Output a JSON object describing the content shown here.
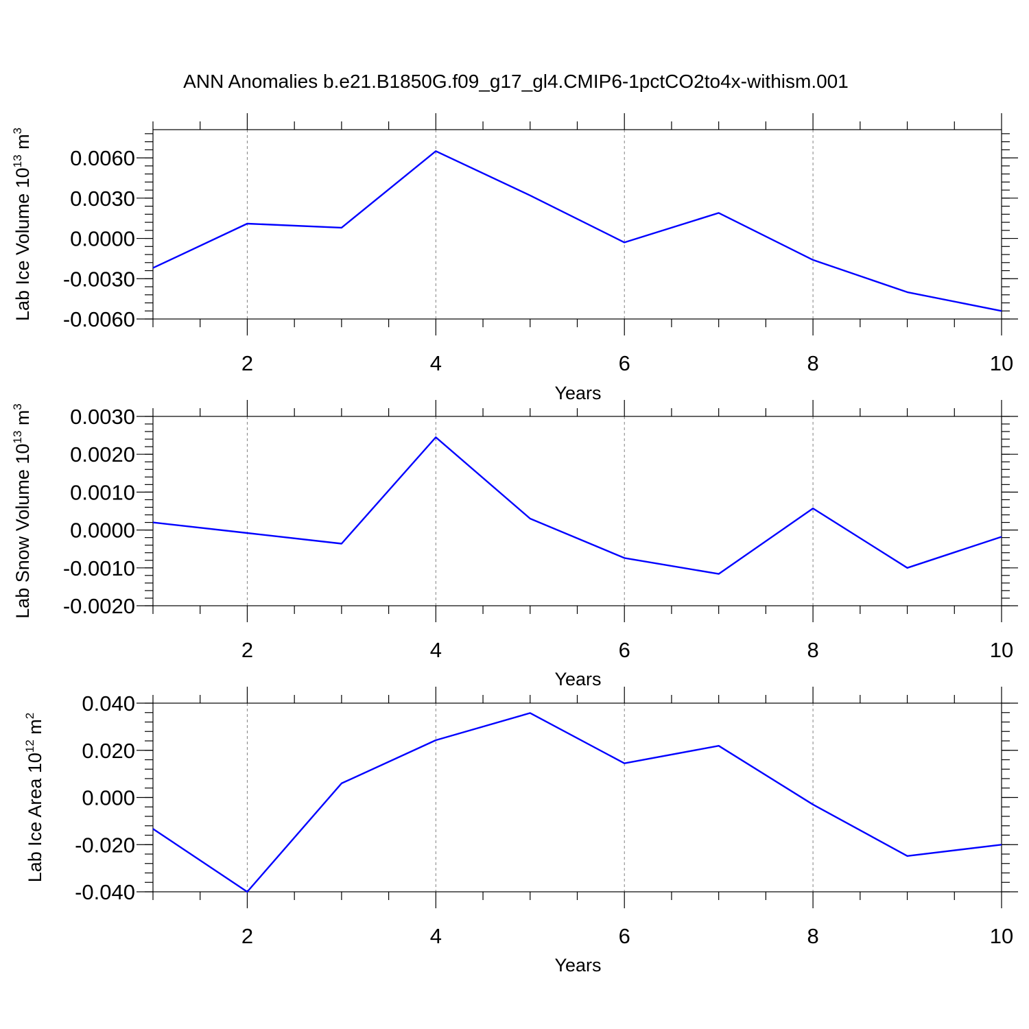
{
  "title": "ANN Anomalies b.e21.B1850G.f09_g17_gl4.CMIP6-1pctCO2to4x-withism.001",
  "colors": {
    "series": "#0000ff",
    "grid": "#808080",
    "axis": "#000000"
  },
  "chart_data": [
    {
      "type": "line",
      "xlabel": "Years",
      "ylabel": {
        "text": "Lab Ice Volume 10",
        "exp": "13",
        "unit_text": " m",
        "unit_exp": "3"
      },
      "xlim": [
        1,
        10
      ],
      "ylim": [
        -0.006,
        0.0081
      ],
      "x_ticks": [
        2,
        4,
        6,
        8,
        10
      ],
      "x_tick_labels": [
        "2",
        "4",
        "6",
        "8",
        "10"
      ],
      "y_ticks": [
        -0.006,
        -0.003,
        0.0,
        0.003,
        0.006
      ],
      "y_tick_labels": [
        "-0.0060",
        "-0.0030",
        "0.0000",
        "0.0030",
        "0.0060"
      ],
      "y_minor_step": 0.0006,
      "grid_x": [
        2,
        4,
        6,
        8
      ],
      "series": [
        {
          "x": [
            1,
            2,
            3,
            4,
            5,
            6,
            7,
            8,
            9,
            10
          ],
          "values": [
            -0.0022,
            0.0011,
            0.0008,
            0.0065,
            0.0032,
            -0.0003,
            0.0019,
            -0.0016,
            -0.004,
            -0.0054
          ]
        }
      ]
    },
    {
      "type": "line",
      "xlabel": "Years",
      "ylabel": {
        "text": "Lab Snow Volume 10",
        "exp": "13",
        "unit_text": " m",
        "unit_exp": "3"
      },
      "xlim": [
        1,
        10
      ],
      "ylim": [
        -0.002,
        0.003
      ],
      "x_ticks": [
        2,
        4,
        6,
        8,
        10
      ],
      "x_tick_labels": [
        "2",
        "4",
        "6",
        "8",
        "10"
      ],
      "y_ticks": [
        -0.002,
        -0.001,
        0.0,
        0.001,
        0.002,
        0.003
      ],
      "y_tick_labels": [
        "-0.0020",
        "-0.0010",
        "0.0000",
        "0.0010",
        "0.0020",
        "0.0030"
      ],
      "y_minor_step": 0.0002,
      "grid_x": [
        2,
        4,
        6,
        8
      ],
      "series": [
        {
          "x": [
            1,
            2,
            3,
            4,
            5,
            6,
            7,
            8,
            9,
            10
          ],
          "values": [
            0.0002,
            -8e-05,
            -0.00036,
            0.00245,
            0.0003,
            -0.00074,
            -0.00116,
            0.00057,
            -0.001,
            -0.00018
          ]
        }
      ]
    },
    {
      "type": "line",
      "xlabel": "Years",
      "ylabel": {
        "text": "Lab Ice Area 10",
        "exp": "12",
        "unit_text": " m",
        "unit_exp": "2"
      },
      "xlim": [
        1,
        10
      ],
      "ylim": [
        -0.04,
        0.04
      ],
      "x_ticks": [
        2,
        4,
        6,
        8,
        10
      ],
      "x_tick_labels": [
        "2",
        "4",
        "6",
        "8",
        "10"
      ],
      "y_ticks": [
        -0.04,
        -0.02,
        0.0,
        0.02,
        0.04
      ],
      "y_tick_labels": [
        "-0.040",
        "-0.020",
        "0.000",
        "0.020",
        "0.040"
      ],
      "y_minor_step": 0.004,
      "grid_x": [
        2,
        4,
        6,
        8
      ],
      "series": [
        {
          "x": [
            1,
            2,
            3,
            4,
            5,
            6,
            7,
            8,
            9,
            10
          ],
          "values": [
            -0.0133,
            -0.04,
            0.006,
            0.0243,
            0.0358,
            0.0145,
            0.0219,
            -0.003,
            -0.0248,
            -0.02
          ]
        }
      ]
    }
  ]
}
